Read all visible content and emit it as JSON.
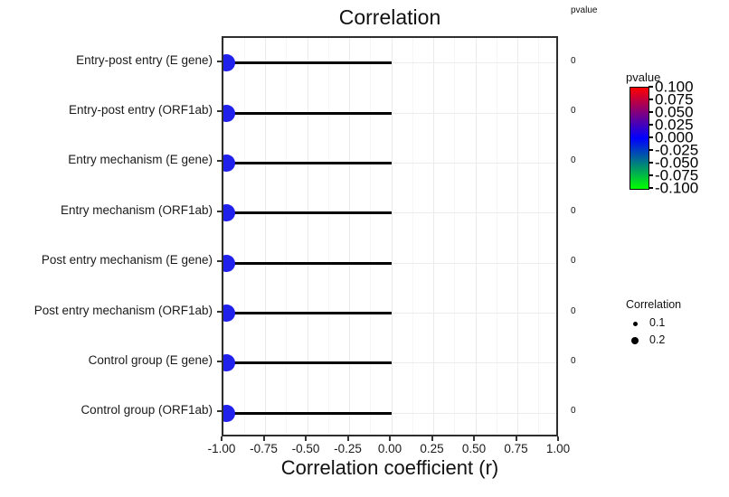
{
  "title": "Correlation",
  "pvalue_column_header": "pvalue",
  "chart_data": {
    "type": "scatter",
    "subtype": "lollipop",
    "title": "Correlation",
    "xlabel": "Correlation coefficient (r)",
    "ylabel": "",
    "categories": [
      "Entry-post entry (E gene)",
      "Entry-post entry (ORF1ab)",
      "Entry mechanism (E gene)",
      "Entry mechanism (ORF1ab)",
      "Post entry mechanism (E gene)",
      "Post entry mechanism (ORF1ab)",
      "Control group (E gene)",
      "Control group (ORF1ab)"
    ],
    "series": [
      {
        "name": "Correlation coefficient (r)",
        "values": [
          -0.98,
          -0.98,
          -0.98,
          -0.98,
          -0.98,
          -0.98,
          -0.98,
          -0.98
        ]
      }
    ],
    "stem_baseline": 0.0,
    "pvalues": [
      0,
      0,
      0,
      0,
      0,
      0,
      0,
      0
    ],
    "pvalue_labels": [
      "0",
      "0",
      "0",
      "0",
      "0",
      "0",
      "0",
      "0"
    ],
    "xlim": [
      -1.0,
      1.0
    ],
    "x_ticks": [
      -1.0,
      -0.75,
      -0.5,
      -0.25,
      0.0,
      0.25,
      0.5,
      0.75,
      1.0
    ],
    "x_tick_labels": [
      "-1.00",
      "-0.75",
      "-0.50",
      "-0.25",
      "0.00",
      "0.25",
      "0.50",
      "0.75",
      "1.00"
    ],
    "grid": true,
    "point_color": "#2121ec",
    "stem_color": "#000000",
    "legend_position": "right",
    "legends": {
      "colorbar": {
        "title": "pvalue",
        "tick_labels": [
          "0.100",
          "0.075",
          "0.050",
          "0.025",
          "0.000",
          "-0.025",
          "-0.050",
          "-0.075",
          "-0.100"
        ],
        "top_color": "#ff0000",
        "mid_color": "#0000ff",
        "bottom_color": "#00ff00"
      },
      "size": {
        "title": "Correlation",
        "entries": [
          {
            "label": "0.1"
          },
          {
            "label": "0.2"
          }
        ]
      }
    }
  }
}
